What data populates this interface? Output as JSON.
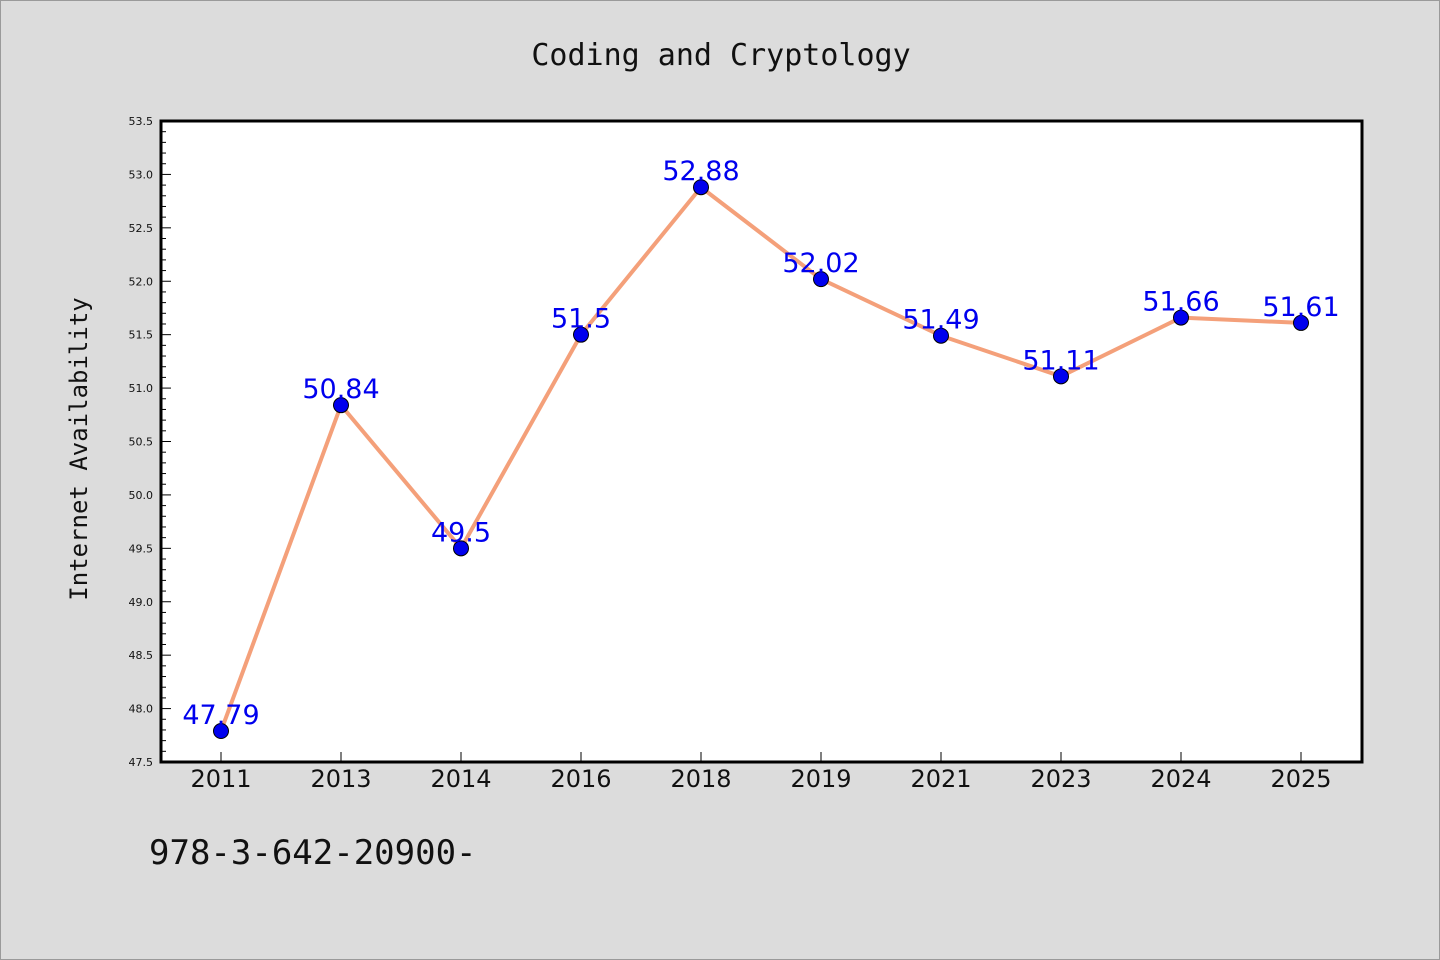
{
  "chart_data": {
    "type": "line",
    "title": "Coding and Cryptology",
    "xlabel": "",
    "ylabel": "Internet Availability",
    "categories": [
      "2011",
      "2013",
      "2014",
      "2016",
      "2018",
      "2019",
      "2021",
      "2023",
      "2024",
      "2025"
    ],
    "series": [
      {
        "values": [
          47.79,
          50.84,
          49.5,
          51.5,
          52.88,
          52.02,
          51.49,
          51.11,
          51.66,
          51.61
        ],
        "data_labels": [
          "47.79",
          "50.84",
          "49.5",
          "51.5",
          "52.88",
          "52.02",
          "51.49",
          "51.11",
          "51.66",
          "51.61"
        ],
        "line_color": "#f4a07a",
        "marker_color": "#0000ee"
      }
    ],
    "ylim": [
      47.5,
      53.5
    ],
    "yticks": [
      "47.5",
      "48.0",
      "48.5",
      "49.0",
      "49.5",
      "50.0",
      "50.5",
      "51.0",
      "51.5",
      "52.0",
      "52.5",
      "53.0",
      "53.5"
    ],
    "grid": false,
    "legend": "none",
    "label_color": "#0000ee"
  },
  "footer": {
    "text": "978-3-642-20900-"
  }
}
